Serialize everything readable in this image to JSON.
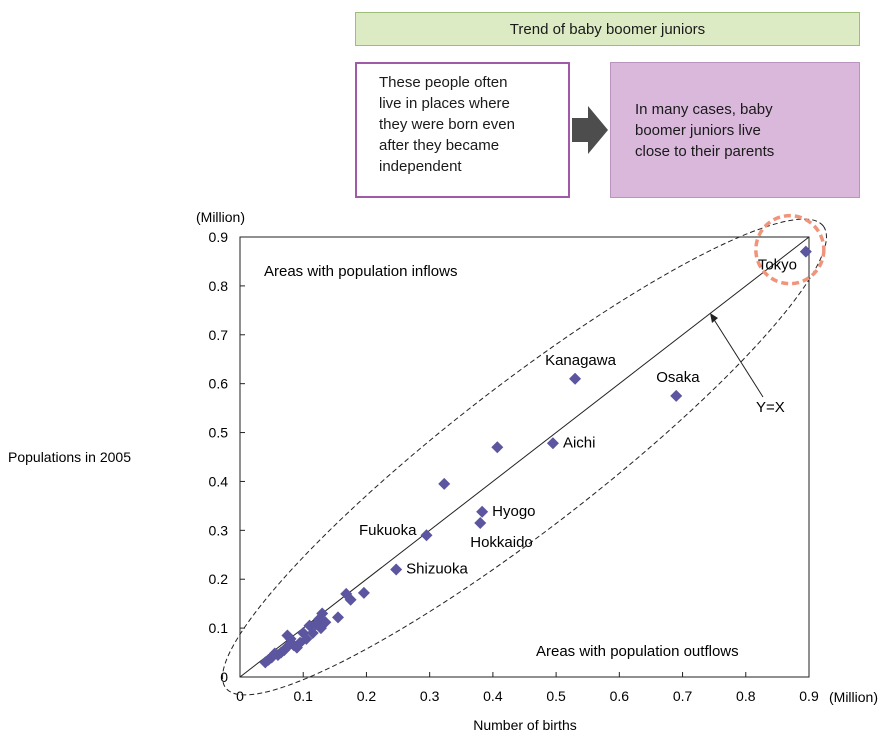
{
  "banner": {
    "title": "Trend of baby boomer juniors"
  },
  "cause_box": {
    "text": "These people often\nlive in places where\nthey were born even\nafter they became\nindependent"
  },
  "effect_box": {
    "text": "In many cases, baby\nboomer juniors live\nclose to their parents"
  },
  "colors": {
    "marker": "#5c559f",
    "highlight": "#f0957b",
    "banner_bg": "#dcebc4",
    "effect_bg": "#d9b8dc",
    "cause_border": "#a05aa8"
  },
  "chart_data": {
    "type": "scatter",
    "title": "",
    "xlabel": "Number of births",
    "ylabel": "Populations in 2005",
    "x_unit": "(Million)",
    "y_unit": "(Million)",
    "xlim": [
      0,
      0.9
    ],
    "ylim": [
      0,
      0.9
    ],
    "xticks": [
      "0",
      "0.1",
      "0.2",
      "0.3",
      "0.4",
      "0.5",
      "0.6",
      "0.7",
      "0.8",
      "0.9"
    ],
    "yticks": [
      "0",
      "0.1",
      "0.2",
      "0.3",
      "0.4",
      "0.5",
      "0.6",
      "0.7",
      "0.8",
      "0.9"
    ],
    "reference_line": {
      "label": "Y=X",
      "slope": 1
    },
    "region_labels": {
      "above": "Areas with population inflows",
      "below": "Areas with population outflows"
    },
    "points": [
      {
        "x": 0.895,
        "y": 0.87,
        "label": "Tokyo"
      },
      {
        "x": 0.53,
        "y": 0.61,
        "label": "Kanagawa"
      },
      {
        "x": 0.69,
        "y": 0.575,
        "label": "Osaka"
      },
      {
        "x": 0.495,
        "y": 0.478,
        "label": "Aichi"
      },
      {
        "x": 0.383,
        "y": 0.338,
        "label": "Hyogo"
      },
      {
        "x": 0.38,
        "y": 0.315,
        "label": "Hokkaido"
      },
      {
        "x": 0.295,
        "y": 0.29,
        "label": "Fukuoka"
      },
      {
        "x": 0.247,
        "y": 0.22,
        "label": "Shizuoka"
      },
      {
        "x": 0.407,
        "y": 0.47,
        "label": ""
      },
      {
        "x": 0.323,
        "y": 0.395,
        "label": ""
      },
      {
        "x": 0.196,
        "y": 0.172,
        "label": ""
      },
      {
        "x": 0.168,
        "y": 0.17,
        "label": ""
      },
      {
        "x": 0.175,
        "y": 0.158,
        "label": ""
      },
      {
        "x": 0.155,
        "y": 0.122,
        "label": ""
      },
      {
        "x": 0.13,
        "y": 0.13,
        "label": ""
      },
      {
        "x": 0.125,
        "y": 0.118,
        "label": ""
      },
      {
        "x": 0.135,
        "y": 0.112,
        "label": ""
      },
      {
        "x": 0.12,
        "y": 0.108,
        "label": ""
      },
      {
        "x": 0.11,
        "y": 0.105,
        "label": ""
      },
      {
        "x": 0.128,
        "y": 0.1,
        "label": ""
      },
      {
        "x": 0.1,
        "y": 0.09,
        "label": ""
      },
      {
        "x": 0.105,
        "y": 0.078,
        "label": ""
      },
      {
        "x": 0.095,
        "y": 0.07,
        "label": ""
      },
      {
        "x": 0.075,
        "y": 0.085,
        "label": ""
      },
      {
        "x": 0.08,
        "y": 0.078,
        "label": ""
      },
      {
        "x": 0.085,
        "y": 0.065,
        "label": ""
      },
      {
        "x": 0.075,
        "y": 0.062,
        "label": ""
      },
      {
        "x": 0.07,
        "y": 0.055,
        "label": ""
      },
      {
        "x": 0.065,
        "y": 0.05,
        "label": ""
      },
      {
        "x": 0.06,
        "y": 0.045,
        "label": ""
      },
      {
        "x": 0.055,
        "y": 0.048,
        "label": ""
      },
      {
        "x": 0.05,
        "y": 0.04,
        "label": ""
      },
      {
        "x": 0.045,
        "y": 0.035,
        "label": ""
      },
      {
        "x": 0.04,
        "y": 0.03,
        "label": ""
      },
      {
        "x": 0.115,
        "y": 0.09,
        "label": ""
      },
      {
        "x": 0.09,
        "y": 0.06,
        "label": ""
      }
    ]
  }
}
